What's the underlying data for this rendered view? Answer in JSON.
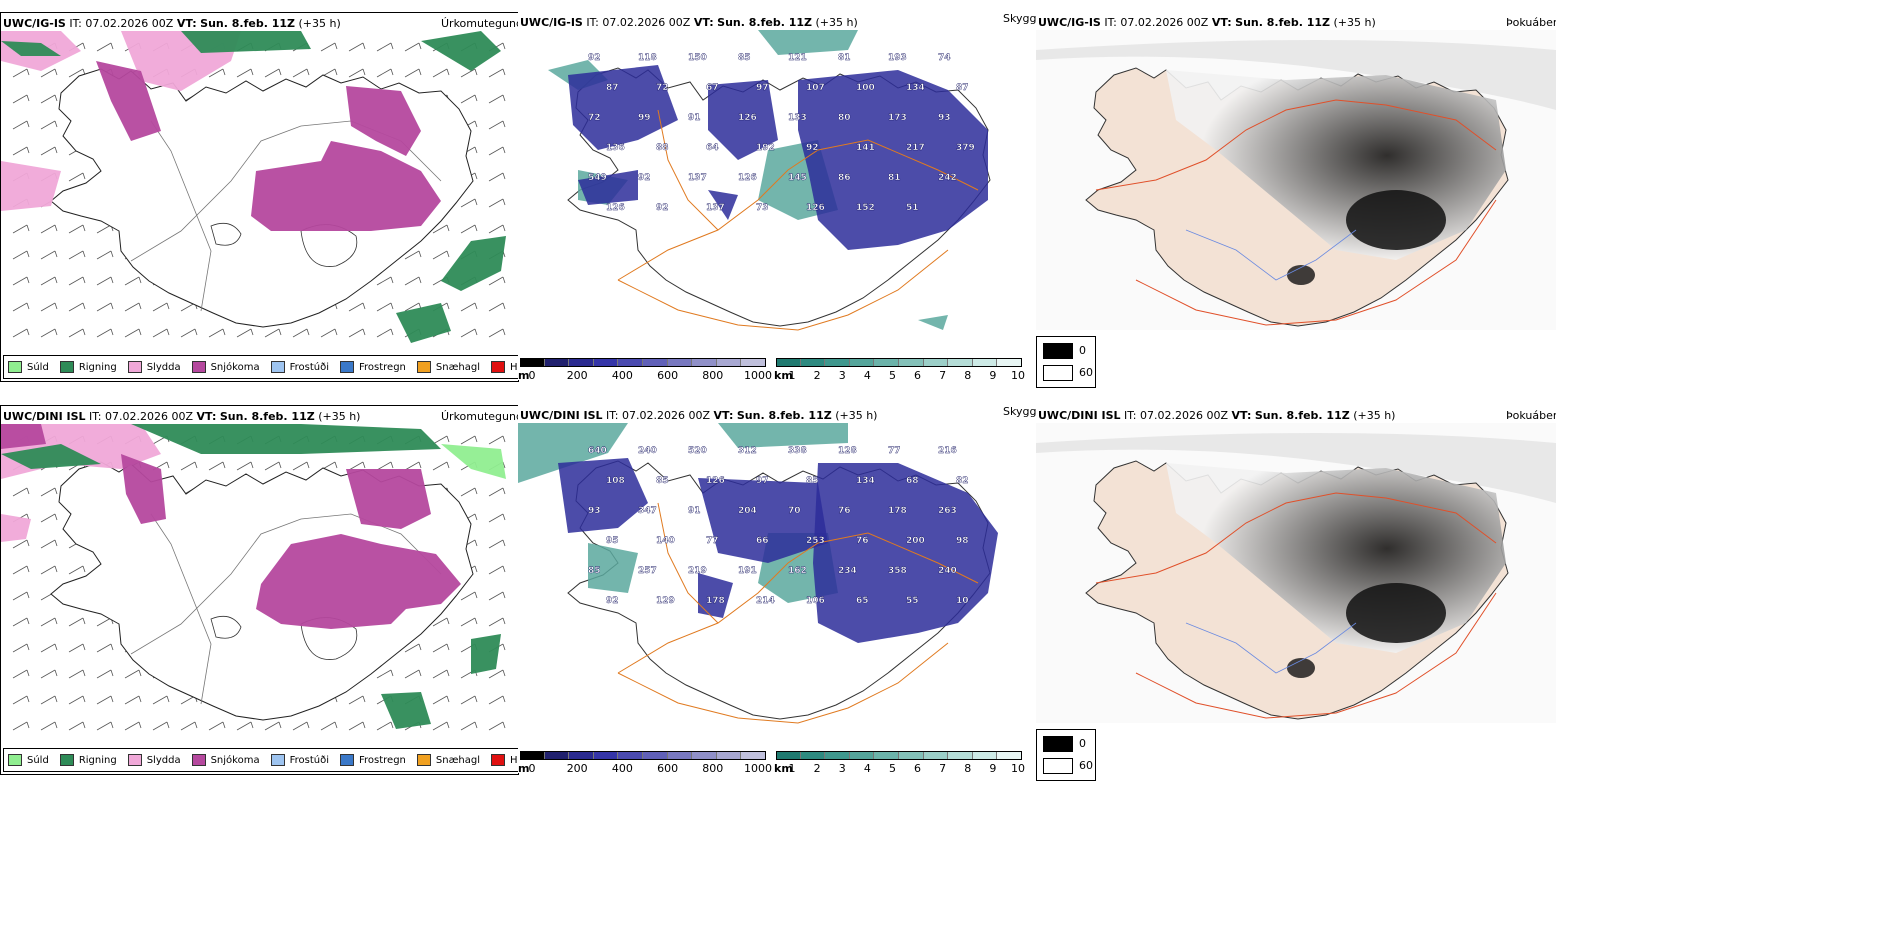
{
  "rows": [
    {
      "model": "UWC/IG-IS",
      "it_label": "IT:",
      "it_value": "07.02.2026 00Z",
      "vt_label": "VT:",
      "vt_value": "Sun. 8.feb. 11Z",
      "lead": "(+35 h)"
    },
    {
      "model": "UWC/DINI ISL",
      "it_label": "IT:",
      "it_value": "07.02.2026 00Z",
      "vt_label": "VT:",
      "vt_value": "Sun. 8.feb. 11Z",
      "lead": "(+35 h)"
    }
  ],
  "panels": {
    "precip_label": "Úrkomutegund",
    "visibility_label": "Skyggni",
    "fog_label": "Þokuábendi"
  },
  "precip_legend": [
    {
      "label": "Súld",
      "color": "#90ee90"
    },
    {
      "label": "Rigning",
      "color": "#2e8b57"
    },
    {
      "label": "Slydda",
      "color": "#f0a8d8"
    },
    {
      "label": "Snjókoma",
      "color": "#b5489e"
    },
    {
      "label": "Frostúði",
      "color": "#9ec4f0"
    },
    {
      "label": "Frostregn",
      "color": "#3a78c8"
    },
    {
      "label": "Snæhagl",
      "color": "#f0a020"
    },
    {
      "label": "Haglél",
      "color": "#e01010"
    }
  ],
  "ceiling_bar": {
    "unit": "m",
    "ticks": [
      "0",
      "200",
      "400",
      "600",
      "800",
      "1000"
    ],
    "colors": [
      "#000000",
      "#20206e",
      "#2a2a90",
      "#3535a8",
      "#4a4ab0",
      "#6060b8",
      "#7878c0",
      "#9090c8",
      "#a8a8d2",
      "#c0c0dc"
    ]
  },
  "visibility_bar": {
    "unit": "km",
    "ticks": [
      "1",
      "2",
      "3",
      "4",
      "5",
      "6",
      "7",
      "8",
      "9",
      "10"
    ],
    "colors": [
      "#1f7a70",
      "#2e8a80",
      "#3f978d",
      "#55a59b",
      "#6cb3aa",
      "#84c1b9",
      "#9ccfc8",
      "#b5ddd7",
      "#cdeae6",
      "#e8f6f4"
    ]
  },
  "fog_legend": [
    {
      "label": "0",
      "color": "#000000"
    },
    {
      "label": "60",
      "color": "#ffffff"
    }
  ],
  "map_labels_top": [
    "92",
    "118",
    "150",
    "85",
    "121",
    "81",
    "193",
    "74",
    "87",
    "72",
    "67",
    "97",
    "107",
    "100",
    "134",
    "87",
    "72",
    "99",
    "91",
    "126",
    "133",
    "80",
    "173",
    "93",
    "136",
    "88",
    "64",
    "192",
    "92",
    "141",
    "217",
    "379",
    "549",
    "92",
    "137",
    "126",
    "145",
    "86",
    "81",
    "242",
    "126",
    "92",
    "137",
    "73",
    "126",
    "152",
    "51"
  ],
  "map_labels_bottom": [
    "640",
    "240",
    "520",
    "312",
    "338",
    "128",
    "77",
    "216",
    "108",
    "85",
    "126",
    "97",
    "85",
    "134",
    "68",
    "82",
    "93",
    "347",
    "91",
    "204",
    "70",
    "76",
    "178",
    "263",
    "95",
    "140",
    "77",
    "66",
    "253",
    "76",
    "200",
    "98",
    "85",
    "257",
    "219",
    "191",
    "162",
    "234",
    "358",
    "240",
    "92",
    "129",
    "178",
    "214",
    "106",
    "65",
    "55",
    "10"
  ]
}
